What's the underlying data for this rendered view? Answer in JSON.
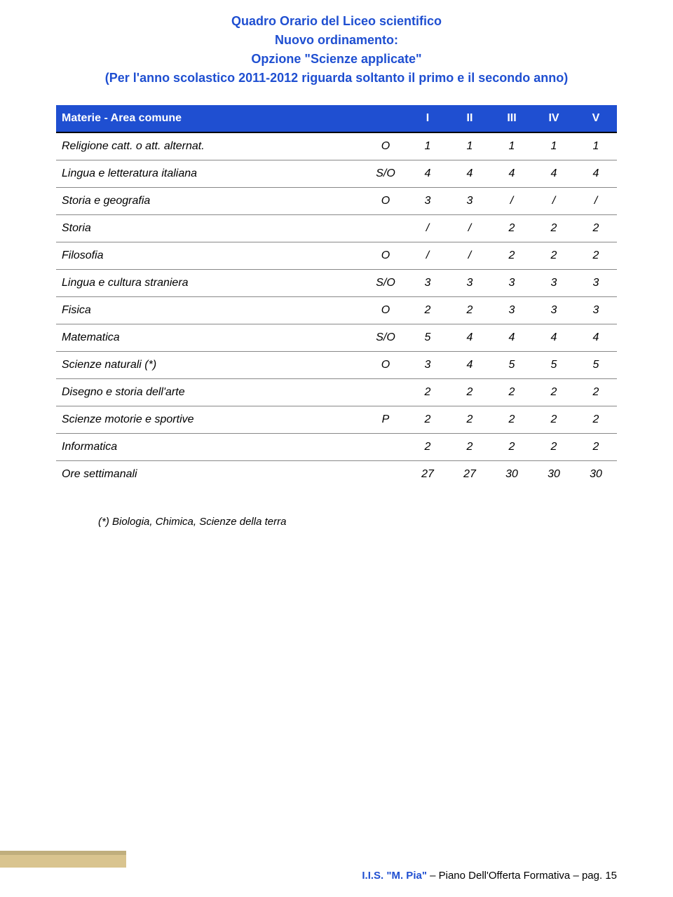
{
  "colors": {
    "title": "#1f4fd1",
    "header_bg": "#1f4fd1",
    "header_text": "#ffffff",
    "header_border": "#000000",
    "footer_bar": "#d9c48f",
    "footer_bar_border": "#c0ae7d",
    "footer_accent": "#1f4fd1"
  },
  "fonts": {
    "title_size": 18,
    "body_size": 16,
    "footnote_size": 15
  },
  "title": {
    "line1": "Quadro Orario del Liceo scientifico",
    "line2": "Nuovo ordinamento:",
    "line3": "Opzione \"Scienze applicate\"",
    "line4": "(Per l'anno scolastico 2011-2012 riguarda soltanto il primo e il secondo anno)"
  },
  "table": {
    "headers": [
      "Materie - Area comune",
      "",
      "I",
      "II",
      "III",
      "IV",
      "V"
    ],
    "rows": [
      [
        "Religione catt. o att. alternat.",
        "O",
        "1",
        "1",
        "1",
        "1",
        "1"
      ],
      [
        "Lingua e letteratura italiana",
        "S/O",
        "4",
        "4",
        "4",
        "4",
        "4"
      ],
      [
        "Storia e geografia",
        "O",
        "3",
        "3",
        "/",
        "/",
        "/"
      ],
      [
        "Storia",
        "",
        "/",
        "/",
        "2",
        "2",
        "2"
      ],
      [
        "Filosofia",
        "O",
        "/",
        "/",
        "2",
        "2",
        "2"
      ],
      [
        "Lingua e cultura straniera",
        "S/O",
        "3",
        "3",
        "3",
        "3",
        "3"
      ],
      [
        "Fisica",
        "O",
        "2",
        "2",
        "3",
        "3",
        "3"
      ],
      [
        "Matematica",
        "S/O",
        "5",
        "4",
        "4",
        "4",
        "4"
      ],
      [
        "Scienze naturali (*)",
        "O",
        "3",
        "4",
        "5",
        "5",
        "5"
      ],
      [
        "Disegno e storia dell'arte",
        "",
        "2",
        "2",
        "2",
        "2",
        "2"
      ],
      [
        "Scienze motorie e sportive",
        "P",
        "2",
        "2",
        "2",
        "2",
        "2"
      ],
      [
        "Informatica",
        "",
        "2",
        "2",
        "2",
        "2",
        "2"
      ]
    ],
    "totals": [
      "Ore settimanali",
      "",
      "27",
      "27",
      "30",
      "30",
      "30"
    ]
  },
  "footnote": "(*) Biologia, Chimica, Scienze della terra",
  "footer": {
    "bold": "I.I.S. \"M. Pia\"",
    "rest": " – Piano Dell'Offerta Formativa – pag. 15"
  }
}
